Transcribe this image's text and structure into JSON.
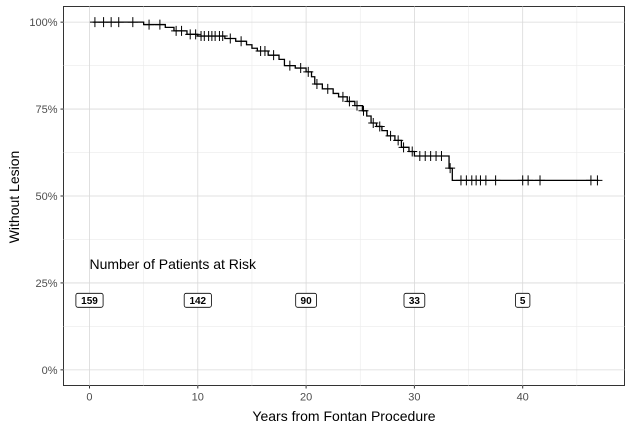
{
  "chart_data": {
    "type": "line",
    "subtype": "kaplan-meier",
    "title": "",
    "xlabel": "Years from Fontan Procedure",
    "ylabel": "Without Lesion",
    "xlim": [
      -2.4,
      49.4
    ],
    "ylim": [
      -0.045,
      1.045
    ],
    "x_ticks": [
      0,
      10,
      20,
      30,
      40
    ],
    "y_ticks": [
      0,
      0.25,
      0.5,
      0.75,
      1.0
    ],
    "y_tick_labels": [
      "0%",
      "25%",
      "50%",
      "75%",
      "100%"
    ],
    "grid": true,
    "legend": "none",
    "line_color": "#000000",
    "series": [
      {
        "steps": [
          {
            "x": 0.3,
            "y": 1.0
          },
          {
            "x": 5.0,
            "y": 0.993
          },
          {
            "x": 7.0,
            "y": 0.985
          },
          {
            "x": 7.8,
            "y": 0.975
          },
          {
            "x": 9.0,
            "y": 0.965
          },
          {
            "x": 10.0,
            "y": 0.96
          },
          {
            "x": 12.5,
            "y": 0.953
          },
          {
            "x": 13.5,
            "y": 0.945
          },
          {
            "x": 14.5,
            "y": 0.935
          },
          {
            "x": 15.0,
            "y": 0.925
          },
          {
            "x": 15.5,
            "y": 0.917
          },
          {
            "x": 16.5,
            "y": 0.905
          },
          {
            "x": 17.5,
            "y": 0.893
          },
          {
            "x": 18.0,
            "y": 0.875
          },
          {
            "x": 19.0,
            "y": 0.868
          },
          {
            "x": 20.0,
            "y": 0.857
          },
          {
            "x": 20.5,
            "y": 0.843
          },
          {
            "x": 20.8,
            "y": 0.822
          },
          {
            "x": 21.5,
            "y": 0.808
          },
          {
            "x": 22.5,
            "y": 0.795
          },
          {
            "x": 23.0,
            "y": 0.785
          },
          {
            "x": 23.8,
            "y": 0.772
          },
          {
            "x": 24.5,
            "y": 0.76
          },
          {
            "x": 25.2,
            "y": 0.745
          },
          {
            "x": 25.6,
            "y": 0.73
          },
          {
            "x": 26.0,
            "y": 0.71
          },
          {
            "x": 26.5,
            "y": 0.7
          },
          {
            "x": 27.0,
            "y": 0.688
          },
          {
            "x": 27.5,
            "y": 0.673
          },
          {
            "x": 28.2,
            "y": 0.66
          },
          {
            "x": 28.8,
            "y": 0.64
          },
          {
            "x": 29.5,
            "y": 0.628
          },
          {
            "x": 30.0,
            "y": 0.615
          },
          {
            "x": 33.2,
            "y": 0.58
          },
          {
            "x": 33.5,
            "y": 0.545
          },
          {
            "x": 47.0,
            "y": 0.545
          }
        ],
        "censored": [
          {
            "x": 0.5,
            "y": 1.0
          },
          {
            "x": 1.3,
            "y": 1.0
          },
          {
            "x": 2.0,
            "y": 1.0
          },
          {
            "x": 2.7,
            "y": 1.0
          },
          {
            "x": 4.0,
            "y": 1.0
          },
          {
            "x": 5.5,
            "y": 0.993
          },
          {
            "x": 6.5,
            "y": 0.993
          },
          {
            "x": 8.0,
            "y": 0.975
          },
          {
            "x": 8.5,
            "y": 0.975
          },
          {
            "x": 9.3,
            "y": 0.965
          },
          {
            "x": 9.8,
            "y": 0.965
          },
          {
            "x": 10.3,
            "y": 0.96
          },
          {
            "x": 10.6,
            "y": 0.96
          },
          {
            "x": 11.0,
            "y": 0.96
          },
          {
            "x": 11.3,
            "y": 0.96
          },
          {
            "x": 11.6,
            "y": 0.96
          },
          {
            "x": 12.0,
            "y": 0.96
          },
          {
            "x": 12.3,
            "y": 0.96
          },
          {
            "x": 13.0,
            "y": 0.953
          },
          {
            "x": 14.0,
            "y": 0.945
          },
          {
            "x": 15.8,
            "y": 0.917
          },
          {
            "x": 16.2,
            "y": 0.917
          },
          {
            "x": 17.0,
            "y": 0.905
          },
          {
            "x": 18.5,
            "y": 0.875
          },
          {
            "x": 19.5,
            "y": 0.868
          },
          {
            "x": 20.2,
            "y": 0.857
          },
          {
            "x": 21.0,
            "y": 0.822
          },
          {
            "x": 22.0,
            "y": 0.808
          },
          {
            "x": 23.4,
            "y": 0.785
          },
          {
            "x": 24.0,
            "y": 0.772
          },
          {
            "x": 24.7,
            "y": 0.76
          },
          {
            "x": 25.3,
            "y": 0.745
          },
          {
            "x": 26.2,
            "y": 0.71
          },
          {
            "x": 26.8,
            "y": 0.7
          },
          {
            "x": 27.8,
            "y": 0.673
          },
          {
            "x": 28.5,
            "y": 0.66
          },
          {
            "x": 29.0,
            "y": 0.64
          },
          {
            "x": 29.8,
            "y": 0.628
          },
          {
            "x": 30.5,
            "y": 0.615
          },
          {
            "x": 31.0,
            "y": 0.615
          },
          {
            "x": 31.5,
            "y": 0.615
          },
          {
            "x": 32.0,
            "y": 0.615
          },
          {
            "x": 32.5,
            "y": 0.615
          },
          {
            "x": 33.3,
            "y": 0.58
          },
          {
            "x": 34.3,
            "y": 0.545
          },
          {
            "x": 34.8,
            "y": 0.545
          },
          {
            "x": 35.3,
            "y": 0.545
          },
          {
            "x": 35.7,
            "y": 0.545
          },
          {
            "x": 36.1,
            "y": 0.545
          },
          {
            "x": 36.6,
            "y": 0.545
          },
          {
            "x": 37.5,
            "y": 0.545
          },
          {
            "x": 40.0,
            "y": 0.545
          },
          {
            "x": 40.5,
            "y": 0.545
          },
          {
            "x": 41.6,
            "y": 0.545
          },
          {
            "x": 46.3,
            "y": 0.545
          },
          {
            "x": 46.9,
            "y": 0.545
          }
        ]
      }
    ],
    "annotations": [
      {
        "text": "Number of Patients at Risk",
        "x": 0,
        "y": 0.29
      }
    ],
    "risk_table": [
      {
        "x": 0,
        "y": 0.2,
        "count": "159"
      },
      {
        "x": 10,
        "y": 0.2,
        "count": "142"
      },
      {
        "x": 20,
        "y": 0.2,
        "count": "90"
      },
      {
        "x": 30,
        "y": 0.2,
        "count": "33"
      },
      {
        "x": 40,
        "y": 0.2,
        "count": "5"
      }
    ]
  }
}
